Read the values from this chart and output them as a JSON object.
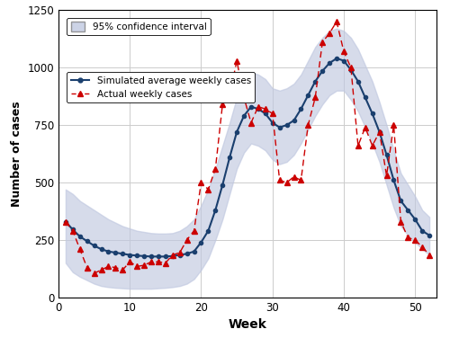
{
  "weeks": [
    1,
    2,
    3,
    4,
    5,
    6,
    7,
    8,
    9,
    10,
    11,
    12,
    13,
    14,
    15,
    16,
    17,
    18,
    19,
    20,
    21,
    22,
    23,
    24,
    25,
    26,
    27,
    28,
    29,
    30,
    31,
    32,
    33,
    34,
    35,
    36,
    37,
    38,
    39,
    40,
    41,
    42,
    43,
    44,
    45,
    46,
    47,
    48,
    49,
    50,
    51,
    52
  ],
  "simulated": [
    330,
    295,
    265,
    245,
    225,
    210,
    200,
    195,
    190,
    185,
    182,
    180,
    178,
    178,
    178,
    180,
    185,
    190,
    200,
    240,
    290,
    380,
    490,
    610,
    720,
    790,
    830,
    820,
    800,
    760,
    740,
    750,
    770,
    820,
    880,
    940,
    985,
    1020,
    1040,
    1030,
    990,
    940,
    870,
    800,
    720,
    620,
    510,
    420,
    380,
    340,
    290,
    270
  ],
  "simulated_lower": [
    150,
    110,
    90,
    75,
    60,
    50,
    45,
    42,
    40,
    38,
    38,
    38,
    38,
    40,
    42,
    45,
    50,
    60,
    80,
    120,
    170,
    250,
    340,
    450,
    560,
    630,
    670,
    660,
    640,
    600,
    580,
    590,
    620,
    670,
    730,
    790,
    840,
    880,
    900,
    900,
    860,
    810,
    740,
    670,
    590,
    490,
    390,
    310,
    270,
    240,
    210,
    185
  ],
  "simulated_upper": [
    470,
    450,
    420,
    400,
    380,
    360,
    340,
    325,
    310,
    300,
    290,
    285,
    280,
    278,
    278,
    280,
    290,
    310,
    340,
    400,
    470,
    560,
    660,
    760,
    870,
    940,
    980,
    970,
    950,
    910,
    900,
    910,
    930,
    970,
    1030,
    1090,
    1130,
    1160,
    1170,
    1160,
    1130,
    1080,
    1010,
    940,
    850,
    750,
    640,
    540,
    490,
    440,
    380,
    350
  ],
  "actual": [
    330,
    290,
    210,
    130,
    105,
    120,
    135,
    130,
    120,
    155,
    135,
    140,
    155,
    155,
    150,
    185,
    195,
    250,
    290,
    500,
    470,
    560,
    840,
    880,
    1030,
    870,
    760,
    830,
    820,
    800,
    510,
    500,
    525,
    510,
    750,
    870,
    1110,
    1150,
    1200,
    1070,
    1000,
    660,
    740,
    660,
    720,
    530,
    750,
    330,
    260,
    250,
    220,
    185
  ],
  "xlabel": "Week",
  "ylabel": "Number of cases",
  "ylim": [
    0,
    1250
  ],
  "xlim": [
    0,
    53
  ],
  "xticks": [
    0,
    10,
    20,
    30,
    40,
    50
  ],
  "yticks": [
    0,
    250,
    500,
    750,
    1000,
    1250
  ],
  "simulated_color": "#1a3f6e",
  "actual_color": "#cc0000",
  "ci_color": "#c0c8e0",
  "grid_color": "#cccccc",
  "background_color": "#ffffff"
}
